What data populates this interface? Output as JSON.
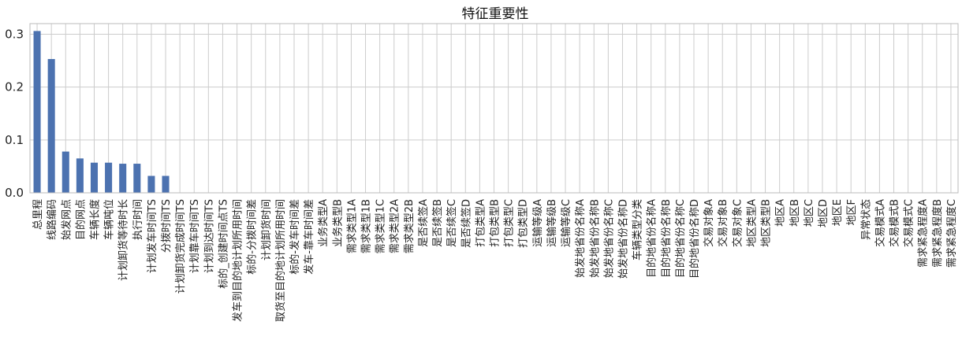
{
  "chart_data": {
    "type": "bar",
    "title": "特征重要性",
    "xlabel": "",
    "ylabel": "",
    "ylim": [
      0,
      0.32
    ],
    "yticks": [
      0.0,
      0.1,
      0.2,
      0.3
    ],
    "ytick_labels": [
      "0.0",
      "0.1",
      "0.2",
      "0.3"
    ],
    "grid": true,
    "bar_color": "#4c72b0",
    "categories": [
      "总里程",
      "线路编码",
      "始发网点",
      "目的网点",
      "车辆长度",
      "车辆吨位",
      "计划卸货等待时长",
      "执行时间",
      "计划发车时间TS",
      "分拨时间TS",
      "计划卸货完成时间TS",
      "计划靠车时间TS",
      "计划到达时间TS",
      "标的_创建时间点TS",
      "发车到目的地计划所用时间",
      "标的-分拨时间差",
      "计划卸货时间",
      "取货至目的地计划所用时间",
      "标的-发车时间差",
      "发车-靠车时间差",
      "业务类型A",
      "业务类型B",
      "需求类型1A",
      "需求类型1B",
      "需求类型1C",
      "需求类型2A",
      "需求类型2B",
      "是否续签A",
      "是否续签B",
      "是否续签C",
      "是否续签D",
      "打包类型A",
      "打包类型B",
      "打包类型C",
      "打包类型D",
      "运输等级A",
      "运输等级B",
      "运输等级C",
      "始发地省份名称A",
      "始发地省份名称B",
      "始发地省份名称C",
      "始发地省份名称D",
      "车辆类型分类",
      "目的地省份名称A",
      "目的地省份名称B",
      "目的地省份名称C",
      "目的地省份名称D",
      "交易对象A",
      "交易对象B",
      "交易对象C",
      "地区类型A",
      "地区类型B",
      "地区A",
      "地区B",
      "地区C",
      "地区D",
      "地区E",
      "地区F",
      "异常状态",
      "交易模式A",
      "交易模式B",
      "交易模式C",
      "需求紧急程度A",
      "需求紧急程度B",
      "需求紧急程度C"
    ],
    "values": [
      0.306,
      0.253,
      0.078,
      0.065,
      0.057,
      0.057,
      0.055,
      0.055,
      0.032,
      0.032,
      0,
      0,
      0,
      0,
      0,
      0,
      0,
      0,
      0,
      0,
      0,
      0,
      0,
      0,
      0,
      0,
      0,
      0,
      0,
      0,
      0,
      0,
      0,
      0,
      0,
      0,
      0,
      0,
      0,
      0,
      0,
      0,
      0,
      0,
      0,
      0,
      0,
      0,
      0,
      0,
      0,
      0,
      0,
      0,
      0,
      0,
      0,
      0,
      0,
      0,
      0,
      0,
      0,
      0,
      0
    ]
  }
}
